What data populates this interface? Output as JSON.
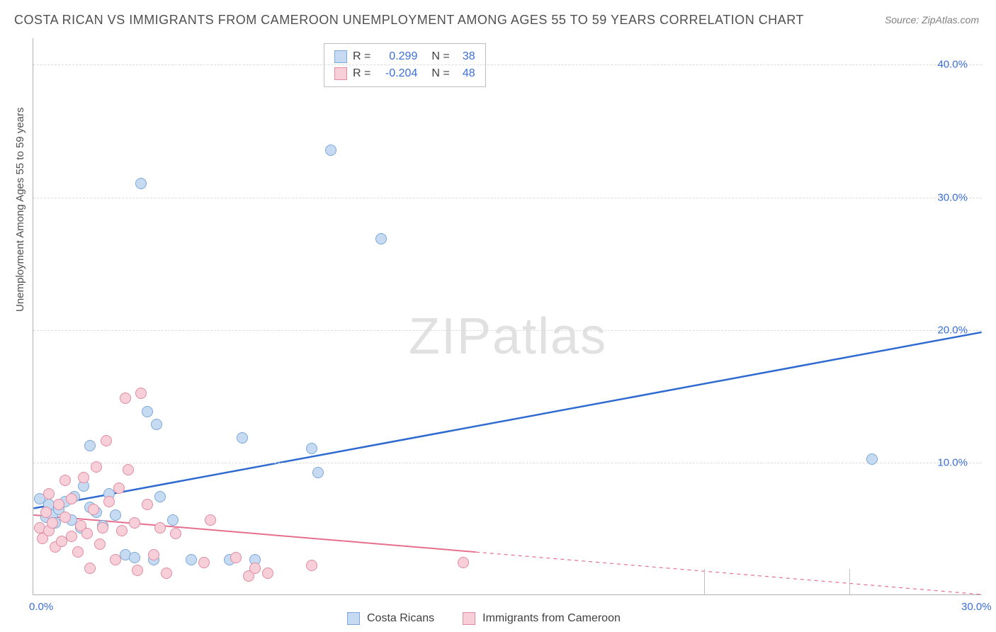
{
  "title": "COSTA RICAN VS IMMIGRANTS FROM CAMEROON UNEMPLOYMENT AMONG AGES 55 TO 59 YEARS CORRELATION CHART",
  "source": "Source: ZipAtlas.com",
  "watermark_a": "ZIP",
  "watermark_b": "atlas",
  "ylabel": "Unemployment Among Ages 55 to 59 years",
  "chart": {
    "type": "scatter",
    "xlim": [
      0,
      30
    ],
    "ylim": [
      0,
      42
    ],
    "x_ticks": [
      {
        "v": 0,
        "label": "0.0%"
      },
      {
        "v": 30,
        "label": "30.0%"
      }
    ],
    "y_ticks": [
      {
        "v": 10,
        "label": "10.0%"
      },
      {
        "v": 20,
        "label": "20.0%"
      },
      {
        "v": 30,
        "label": "30.0%"
      },
      {
        "v": 40,
        "label": "40.0%"
      }
    ],
    "y_gridlines": [
      10,
      20,
      30,
      40
    ],
    "grid_color": "#dcdcdc",
    "background_color": "#ffffff",
    "marker_radius": 8,
    "series": [
      {
        "name": "Costa Ricans",
        "fill": "#c6dbf2",
        "stroke": "#7ba7da",
        "line_color": "#2e6ad0",
        "line_width": 2.5,
        "trend": {
          "x1": 0,
          "y1": 6.5,
          "x2": 30,
          "y2": 19.8,
          "dash_from_x": null
        },
        "points": [
          [
            0.2,
            7.2
          ],
          [
            0.4,
            5.8
          ],
          [
            0.5,
            6.8
          ],
          [
            0.6,
            6.0
          ],
          [
            0.7,
            5.4
          ],
          [
            0.8,
            6.4
          ],
          [
            1.0,
            7.0
          ],
          [
            1.2,
            5.6
          ],
          [
            1.3,
            7.4
          ],
          [
            1.5,
            5.0
          ],
          [
            1.6,
            8.2
          ],
          [
            1.8,
            11.2
          ],
          [
            1.8,
            6.6
          ],
          [
            2.0,
            6.2
          ],
          [
            2.2,
            5.2
          ],
          [
            2.4,
            7.6
          ],
          [
            2.6,
            6.0
          ],
          [
            2.9,
            3.0
          ],
          [
            3.2,
            2.8
          ],
          [
            3.4,
            31.0
          ],
          [
            3.6,
            13.8
          ],
          [
            3.8,
            2.6
          ],
          [
            3.9,
            12.8
          ],
          [
            4.0,
            7.4
          ],
          [
            4.4,
            5.6
          ],
          [
            5.0,
            2.6
          ],
          [
            6.2,
            2.6
          ],
          [
            6.6,
            11.8
          ],
          [
            7.0,
            2.6
          ],
          [
            8.8,
            11.0
          ],
          [
            9.0,
            9.2
          ],
          [
            9.4,
            33.5
          ],
          [
            11.0,
            26.8
          ],
          [
            26.5,
            10.2
          ]
        ]
      },
      {
        "name": "Immigrants from Cameroon",
        "fill": "#f6cfd9",
        "stroke": "#e18ba3",
        "line_color": "#e66f8e",
        "line_width": 2,
        "trend": {
          "x1": 0,
          "y1": 6.0,
          "x2": 30,
          "y2": 0.0,
          "dash_from_x": 14
        },
        "points": [
          [
            0.2,
            5.0
          ],
          [
            0.3,
            4.2
          ],
          [
            0.4,
            6.2
          ],
          [
            0.5,
            4.8
          ],
          [
            0.5,
            7.6
          ],
          [
            0.6,
            5.4
          ],
          [
            0.7,
            3.6
          ],
          [
            0.8,
            6.8
          ],
          [
            0.9,
            4.0
          ],
          [
            1.0,
            5.8
          ],
          [
            1.0,
            8.6
          ],
          [
            1.2,
            4.4
          ],
          [
            1.2,
            7.2
          ],
          [
            1.4,
            3.2
          ],
          [
            1.5,
            5.2
          ],
          [
            1.6,
            8.8
          ],
          [
            1.7,
            4.6
          ],
          [
            1.8,
            2.0
          ],
          [
            1.9,
            6.4
          ],
          [
            2.0,
            9.6
          ],
          [
            2.1,
            3.8
          ],
          [
            2.2,
            5.0
          ],
          [
            2.3,
            11.6
          ],
          [
            2.4,
            7.0
          ],
          [
            2.6,
            2.6
          ],
          [
            2.7,
            8.0
          ],
          [
            2.8,
            4.8
          ],
          [
            2.9,
            14.8
          ],
          [
            3.0,
            9.4
          ],
          [
            3.2,
            5.4
          ],
          [
            3.3,
            1.8
          ],
          [
            3.4,
            15.2
          ],
          [
            3.6,
            6.8
          ],
          [
            3.8,
            3.0
          ],
          [
            4.0,
            5.0
          ],
          [
            4.2,
            1.6
          ],
          [
            4.5,
            4.6
          ],
          [
            5.4,
            2.4
          ],
          [
            5.6,
            5.6
          ],
          [
            6.4,
            2.8
          ],
          [
            6.8,
            1.4
          ],
          [
            7.0,
            2.0
          ],
          [
            7.4,
            1.6
          ],
          [
            8.8,
            2.2
          ],
          [
            13.6,
            2.4
          ]
        ]
      }
    ],
    "x_vbars": [
      21.2,
      25.8
    ]
  },
  "corr_legend": [
    {
      "r_label": "R =",
      "r": "0.299",
      "n_label": "N =",
      "n": "38",
      "swatch_fill": "#c6dbf2",
      "swatch_stroke": "#7ba7da"
    },
    {
      "r_label": "R =",
      "r": "-0.204",
      "n_label": "N =",
      "n": "48",
      "swatch_fill": "#f6cfd9",
      "swatch_stroke": "#e18ba3"
    }
  ],
  "series_legend": [
    {
      "label": "Costa Ricans",
      "fill": "#c6dbf2",
      "stroke": "#7ba7da"
    },
    {
      "label": "Immigrants from Cameroon",
      "fill": "#f6cfd9",
      "stroke": "#e18ba3"
    }
  ]
}
